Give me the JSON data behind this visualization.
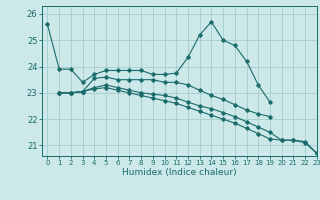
{
  "xlabel": "Humidex (Indice chaleur)",
  "background_color": "#cce8e8",
  "grid_color": "#aad0d0",
  "line_color": "#1a6b6b",
  "xlim": [
    -0.5,
    23
  ],
  "ylim": [
    20.6,
    26.3
  ],
  "yticks": [
    21,
    22,
    23,
    24,
    25,
    26
  ],
  "xticks": [
    0,
    1,
    2,
    3,
    4,
    5,
    6,
    7,
    8,
    9,
    10,
    11,
    12,
    13,
    14,
    15,
    16,
    17,
    18,
    19,
    20,
    21,
    22,
    23
  ],
  "series": [
    [
      25.6,
      23.9,
      23.9,
      23.4,
      23.7,
      23.85,
      23.85,
      23.85,
      23.85,
      23.7,
      23.7,
      23.75,
      24.35,
      25.2,
      25.7,
      25.0,
      24.8,
      24.2,
      23.3,
      22.65,
      null,
      null,
      null,
      null
    ],
    [
      null,
      23.0,
      23.0,
      23.05,
      23.55,
      23.6,
      23.5,
      23.5,
      23.5,
      23.5,
      23.4,
      23.4,
      23.3,
      23.1,
      22.9,
      22.75,
      22.55,
      22.35,
      22.2,
      22.1,
      null,
      null,
      null,
      null
    ],
    [
      null,
      23.0,
      23.0,
      23.05,
      23.2,
      23.3,
      23.2,
      23.1,
      23.0,
      22.95,
      22.9,
      22.8,
      22.65,
      22.5,
      22.4,
      22.25,
      22.1,
      21.9,
      21.7,
      21.5,
      21.2,
      21.2,
      21.15,
      20.7
    ],
    [
      null,
      23.0,
      23.0,
      23.05,
      23.15,
      23.2,
      23.1,
      23.0,
      22.9,
      22.8,
      22.7,
      22.6,
      22.45,
      22.3,
      22.15,
      22.0,
      21.85,
      21.65,
      21.45,
      21.25,
      21.2,
      21.2,
      21.1,
      20.7
    ]
  ]
}
